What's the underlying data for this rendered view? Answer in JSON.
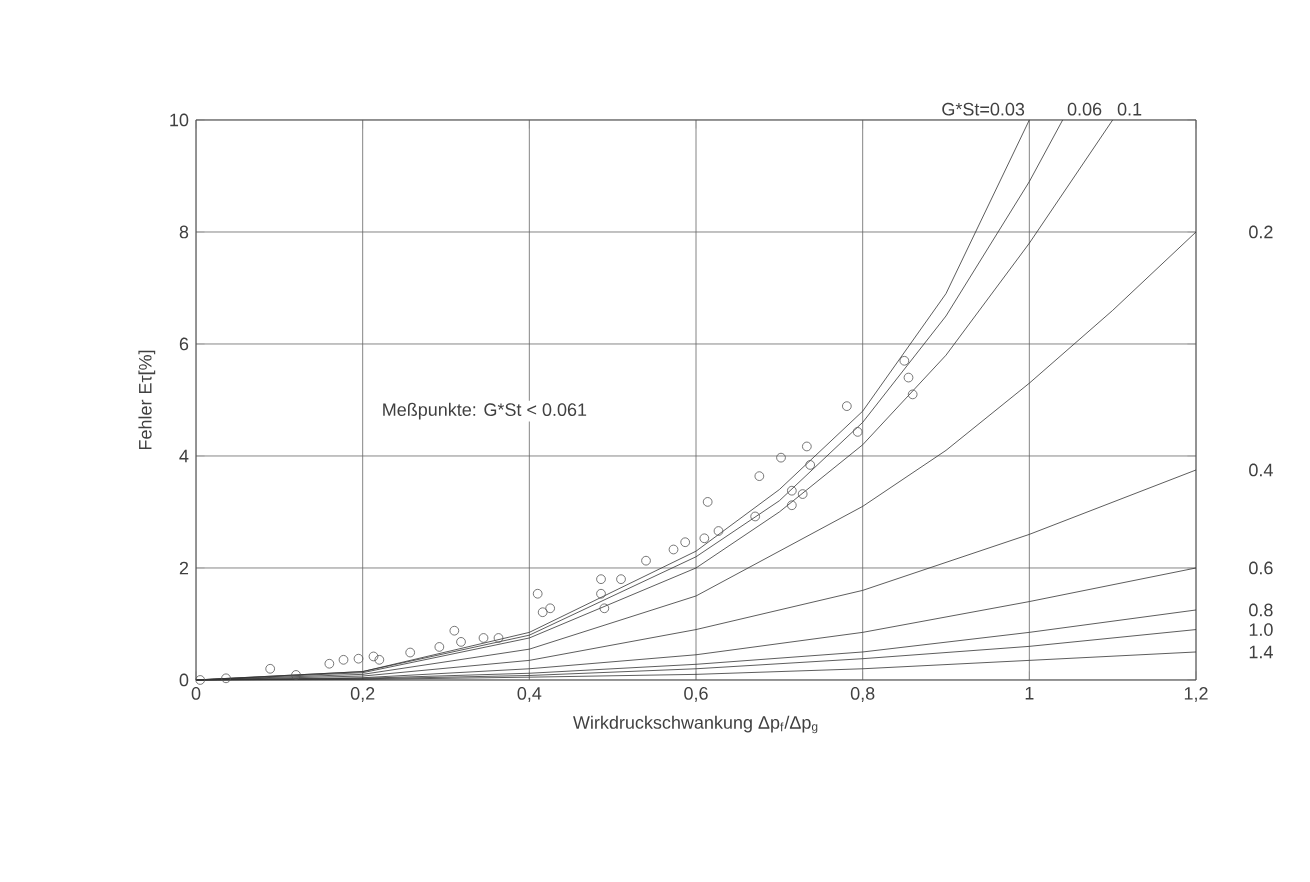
{
  "chart_data": {
    "type": "line",
    "xlabel": "Wirkdruckschwankung Δp$_{f}$/Δp$_{g}$",
    "ylabel": "Fehler Eτ[%]",
    "xlim": [
      0,
      1.2
    ],
    "ylim": [
      0,
      10
    ],
    "xticks": [
      0,
      {
        "value": 0.2,
        "label": "0,2"
      },
      {
        "value": 0.4,
        "label": "0,4"
      },
      {
        "value": 0.6,
        "label": "0,6"
      },
      {
        "value": 0.8,
        "label": "0,8"
      },
      1,
      {
        "value": 1.2,
        "label": "1,2"
      }
    ],
    "yticks": [
      0,
      2,
      4,
      6,
      8,
      10
    ],
    "grid": true,
    "annotations": [
      "Meßpunkte: G*St < 0.061"
    ],
    "series": [
      {
        "name": "G*St=0.03",
        "color": "#333333",
        "marker": "none",
        "x": [
          0,
          0.2,
          0.4,
          0.6,
          0.7,
          0.8,
          0.9,
          1.0
        ],
        "values": [
          0,
          0.15,
          0.85,
          2.3,
          3.4,
          4.8,
          6.9,
          10
        ]
      },
      {
        "name": "0.06",
        "color": "#333333",
        "marker": "none",
        "x": [
          0,
          0.2,
          0.4,
          0.6,
          0.7,
          0.8,
          0.9,
          1.0,
          1.04
        ],
        "values": [
          0,
          0.15,
          0.8,
          2.2,
          3.2,
          4.6,
          6.5,
          8.9,
          10
        ]
      },
      {
        "name": "0.1",
        "color": "#333333",
        "marker": "none",
        "x": [
          0,
          0.2,
          0.4,
          0.6,
          0.7,
          0.8,
          0.9,
          1.0,
          1.1
        ],
        "values": [
          0,
          0.13,
          0.75,
          2.0,
          3.0,
          4.2,
          5.8,
          7.8,
          10
        ]
      },
      {
        "name": "0.2",
        "color": "#333333",
        "marker": "none",
        "x": [
          0,
          0.2,
          0.4,
          0.6,
          0.8,
          0.9,
          1.0,
          1.1,
          1.2
        ],
        "values": [
          0,
          0.1,
          0.55,
          1.5,
          3.1,
          4.1,
          5.3,
          6.6,
          8.0
        ]
      },
      {
        "name": "0.4",
        "color": "#333333",
        "marker": "none",
        "x": [
          0,
          0.2,
          0.4,
          0.6,
          0.8,
          1.0,
          1.2
        ],
        "values": [
          0,
          0.07,
          0.35,
          0.9,
          1.6,
          2.6,
          3.75
        ]
      },
      {
        "name": "0.6",
        "color": "#333333",
        "marker": "none",
        "x": [
          0,
          0.2,
          0.4,
          0.6,
          0.8,
          1.0,
          1.2
        ],
        "values": [
          0,
          0.04,
          0.2,
          0.45,
          0.85,
          1.4,
          2.0
        ]
      },
      {
        "name": "0.8",
        "color": "#333333",
        "marker": "none",
        "x": [
          0,
          0.2,
          0.4,
          0.6,
          0.8,
          1.0,
          1.2
        ],
        "values": [
          0,
          0.03,
          0.12,
          0.28,
          0.5,
          0.85,
          1.25
        ]
      },
      {
        "name": "1.0",
        "color": "#333333",
        "marker": "none",
        "x": [
          0,
          0.2,
          0.4,
          0.6,
          0.8,
          1.0,
          1.2
        ],
        "values": [
          0,
          0.02,
          0.08,
          0.2,
          0.38,
          0.6,
          0.9
        ]
      },
      {
        "name": "1.4",
        "color": "#333333",
        "marker": "none",
        "x": [
          0,
          0.2,
          0.4,
          0.6,
          0.8,
          1.0,
          1.2
        ],
        "values": [
          0,
          0.01,
          0.05,
          0.1,
          0.2,
          0.35,
          0.5
        ]
      },
      {
        "type": "scatter",
        "color": "#555555",
        "marker": "circle",
        "x": [
          0.005,
          0.036,
          0.089,
          0.12,
          0.16,
          0.177,
          0.195,
          0.213,
          0.22,
          0.257,
          0.292,
          0.31,
          0.318,
          0.345,
          0.363,
          0.41,
          0.416,
          0.425,
          0.486,
          0.486,
          0.49,
          0.51,
          0.54,
          0.573,
          0.587,
          0.61,
          0.614,
          0.627,
          0.671,
          0.676,
          0.702,
          0.715,
          0.715,
          0.728,
          0.733,
          0.737,
          0.781,
          0.794,
          0.85,
          0.855,
          0.86
        ],
        "values": [
          0,
          0.03,
          0.2,
          0.09,
          0.29,
          0.36,
          0.38,
          0.42,
          0.36,
          0.49,
          0.59,
          0.88,
          0.68,
          0.75,
          0.75,
          1.54,
          1.21,
          1.28,
          1.8,
          1.54,
          1.28,
          1.8,
          2.13,
          2.33,
          2.46,
          2.53,
          3.18,
          2.66,
          2.92,
          3.64,
          3.97,
          3.38,
          3.12,
          3.32,
          4.17,
          3.84,
          4.89,
          4.43,
          5.7,
          5.4,
          5.1
        ]
      }
    ]
  }
}
